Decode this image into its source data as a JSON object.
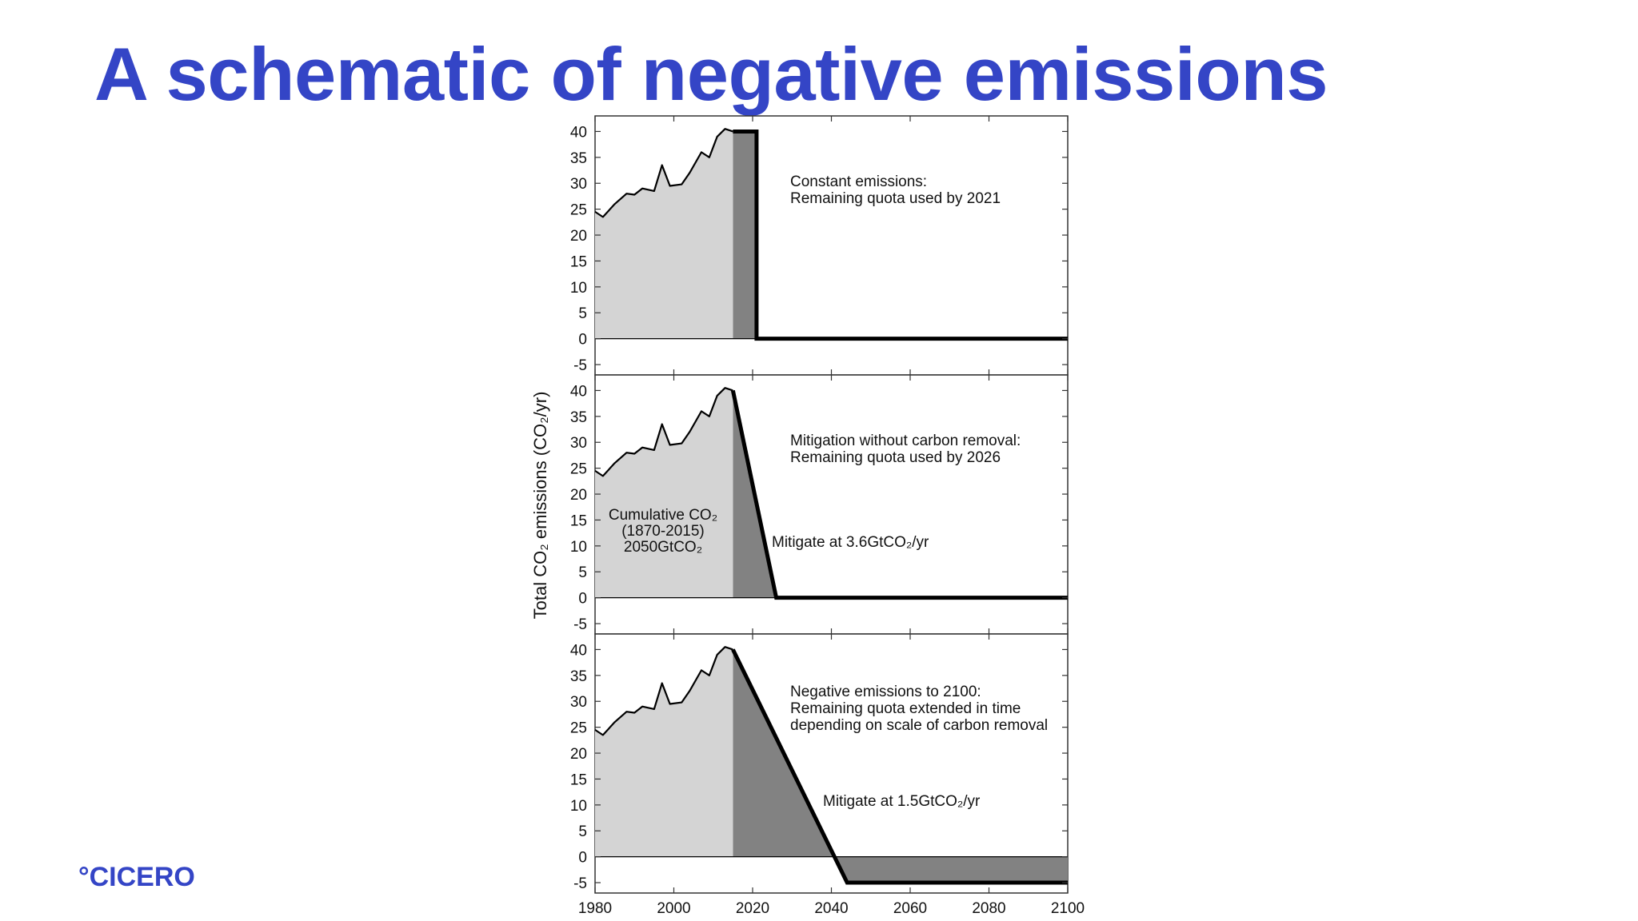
{
  "slide": {
    "title": "A schematic of negative emissions",
    "logo": "°CICERO"
  },
  "colors": {
    "title": "#3445c6",
    "historical_fill": "#d4d4d4",
    "remaining_fill": "#828282",
    "line": "#000000"
  },
  "chart_data": [
    {
      "type": "area",
      "ylabel": "Total CO₂ emissions (CO₂/yr)",
      "xlim": [
        1980,
        2100
      ],
      "ylim": [
        -7,
        43
      ],
      "yticks": [
        40,
        35,
        30,
        25,
        20,
        15,
        10,
        5,
        0,
        -5
      ],
      "xticks": [
        1980,
        2000,
        2020,
        2040,
        2060,
        2080,
        2100
      ],
      "historical": {
        "x": [
          1980,
          1982,
          1985,
          1988,
          1990,
          1992,
          1995,
          1997,
          1999,
          2002,
          2004,
          2007,
          2009,
          2011,
          2013,
          2015
        ],
        "y": [
          24.5,
          23.5,
          26,
          28,
          27.8,
          29,
          28.5,
          33.5,
          29.5,
          29.8,
          32,
          36,
          35,
          39,
          40.5,
          40
        ]
      },
      "scenarios": [
        {
          "x": [
            2015,
            2021,
            2021,
            2100
          ],
          "y": [
            40,
            40,
            0,
            0
          ],
          "annotation": [
            "Constant emissions:",
            "Remaining quota used by 2021"
          ]
        },
        {
          "x": [
            2015,
            2026,
            2100
          ],
          "y": [
            40,
            0,
            0
          ],
          "annotation": [
            "Mitigation without carbon removal:",
            "Remaining quota used by 2026"
          ],
          "rate_label": "Mitigate at 3.6GtCO₂/yr",
          "cumulative_label": [
            "Cumulative CO₂",
            "(1870-2015)",
            "2050GtCO₂"
          ]
        },
        {
          "x": [
            2015,
            2044,
            2100
          ],
          "y": [
            40,
            -5,
            -5
          ],
          "annotation": [
            "Negative emissions to 2100:",
            "Remaining quota extended in time",
            "depending on scale of carbon removal"
          ],
          "rate_label": "Mitigate at 1.5GtCO₂/yr"
        }
      ]
    }
  ]
}
